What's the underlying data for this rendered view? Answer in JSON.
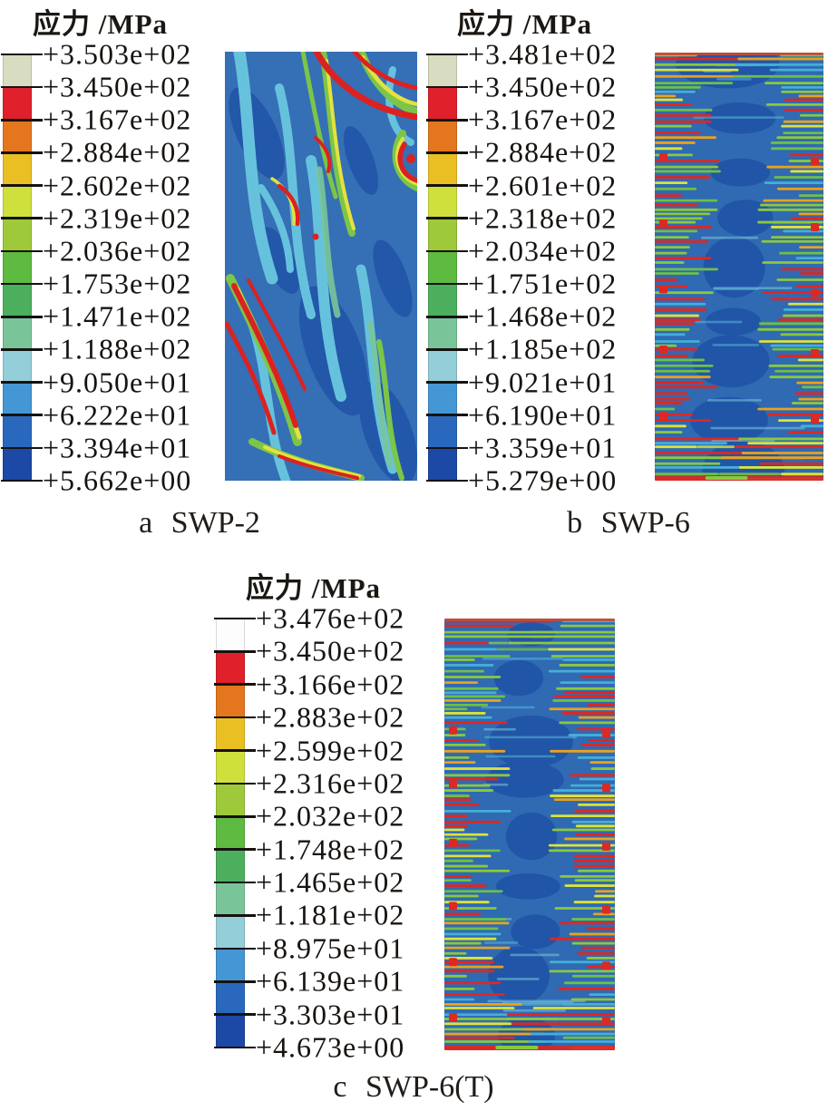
{
  "panels": [
    {
      "letter": "a",
      "caption": "a SWP-2",
      "legend_title": "应力 /MPa",
      "top_band_color": "#d8dcc0",
      "legend_labels": [
        "+3.503e+02",
        "+3.450e+02",
        "+3.167e+02",
        "+2.884e+02",
        "+2.602e+02",
        "+2.319e+02",
        "+2.036e+02",
        "+1.753e+02",
        "+1.471e+02",
        "+1.188e+02",
        "+9.050e+01",
        "+6.222e+01",
        "+3.394e+01",
        "+5.662e+00"
      ]
    },
    {
      "letter": "b",
      "caption": "b SWP-6",
      "legend_title": "应力 /MPa",
      "top_band_color": "#d8dcc0",
      "legend_labels": [
        "+3.481e+02",
        "+3.450e+02",
        "+3.167e+02",
        "+2.884e+02",
        "+2.601e+02",
        "+2.318e+02",
        "+2.034e+02",
        "+1.751e+02",
        "+1.468e+02",
        "+1.185e+02",
        "+9.021e+01",
        "+6.190e+01",
        "+3.359e+01",
        "+5.279e+00"
      ]
    },
    {
      "letter": "c",
      "caption": "c SWP-6(T)",
      "legend_title": "应力 /MPa",
      "top_band_color": "#fdfdfd",
      "legend_labels": [
        "+3.476e+02",
        "+3.450e+02",
        "+3.166e+02",
        "+2.883e+02",
        "+2.599e+02",
        "+2.316e+02",
        "+2.032e+02",
        "+1.748e+02",
        "+1.465e+02",
        "+1.181e+02",
        "+8.975e+01",
        "+6.139e+01",
        "+3.303e+01",
        "+4.673e+00"
      ]
    }
  ],
  "colorbar": {
    "band_colors_top_to_bottom": [
      "#d8dcc0",
      "#e0202a",
      "#e4761e",
      "#eabf24",
      "#cfe03c",
      "#9ec93a",
      "#5eba40",
      "#4caf5e",
      "#79c599",
      "#93ced9",
      "#4596d4",
      "#2a68bd",
      "#1c49a6"
    ]
  },
  "chart_data": [
    {
      "type": "heatmap",
      "panel": "a",
      "title": "应力 /MPa",
      "caption": "a SWP-2",
      "unit": "MPa",
      "legend_position": "left",
      "colorbar_tick_labels": [
        "+3.503e+02",
        "+3.450e+02",
        "+3.167e+02",
        "+2.884e+02",
        "+2.602e+02",
        "+2.319e+02",
        "+2.036e+02",
        "+1.753e+02",
        "+1.471e+02",
        "+1.188e+02",
        "+9.050e+01",
        "+6.222e+01",
        "+3.394e+01",
        "+5.662e+00"
      ],
      "colorbar_tick_values_MPa": [
        350.3,
        345.0,
        316.7,
        288.4,
        260.2,
        231.9,
        203.6,
        175.3,
        147.1,
        118.8,
        90.5,
        62.22,
        33.94,
        5.662
      ],
      "value_range_MPa": [
        5.662,
        350.3
      ],
      "band_colors_top_to_bottom": [
        "#d8dcc0",
        "#e0202a",
        "#e4761e",
        "#eabf24",
        "#cfe03c",
        "#9ec93a",
        "#5eba40",
        "#4caf5e",
        "#79c599",
        "#93ced9",
        "#4596d4",
        "#2a68bd",
        "#1c49a6"
      ],
      "pattern_hint": "blue stress field crossed by steep diagonal wavy bands of cyan/green/yellow with red high-stress streaks at top-right and lower-left"
    },
    {
      "type": "heatmap",
      "panel": "b",
      "title": "应力 /MPa",
      "caption": "b SWP-6",
      "unit": "MPa",
      "legend_position": "left",
      "colorbar_tick_labels": [
        "+3.481e+02",
        "+3.450e+02",
        "+3.167e+02",
        "+2.884e+02",
        "+2.601e+02",
        "+2.318e+02",
        "+2.034e+02",
        "+1.751e+02",
        "+1.468e+02",
        "+1.185e+02",
        "+9.021e+01",
        "+6.190e+01",
        "+3.359e+01",
        "+5.279e+00"
      ],
      "colorbar_tick_values_MPa": [
        348.1,
        345.0,
        316.7,
        288.4,
        260.1,
        231.8,
        203.4,
        175.1,
        146.8,
        118.5,
        90.21,
        61.9,
        33.59,
        5.279
      ],
      "value_range_MPa": [
        5.279,
        348.1
      ],
      "band_colors_top_to_bottom": [
        "#d8dcc0",
        "#e0202a",
        "#e4761e",
        "#eabf24",
        "#cfe03c",
        "#9ec93a",
        "#5eba40",
        "#4caf5e",
        "#79c599",
        "#93ced9",
        "#4596d4",
        "#2a68bd",
        "#1c49a6"
      ],
      "pattern_hint": "tall wall panel with fine horizontal stress striping; red/green high stress along vertical edges, top and bottom; dark blue low-stress core; red dots at connector points"
    },
    {
      "type": "heatmap",
      "panel": "c",
      "title": "应力 /MPa",
      "caption": "c SWP-6(T)",
      "unit": "MPa",
      "legend_position": "left",
      "colorbar_tick_labels": [
        "+3.476e+02",
        "+3.450e+02",
        "+3.166e+02",
        "+2.883e+02",
        "+2.599e+02",
        "+2.316e+02",
        "+2.032e+02",
        "+1.748e+02",
        "+1.465e+02",
        "+1.181e+02",
        "+8.975e+01",
        "+6.139e+01",
        "+3.303e+01",
        "+4.673e+00"
      ],
      "colorbar_tick_values_MPa": [
        347.6,
        345.0,
        316.6,
        288.3,
        259.9,
        231.6,
        203.2,
        174.8,
        146.5,
        118.1,
        89.75,
        61.39,
        33.03,
        4.673
      ],
      "value_range_MPa": [
        4.673,
        347.6
      ],
      "band_colors_top_to_bottom": [
        "#fdfdfd",
        "#e0202a",
        "#e4761e",
        "#eabf24",
        "#cfe03c",
        "#9ec93a",
        "#5eba40",
        "#4caf5e",
        "#79c599",
        "#93ced9",
        "#4596d4",
        "#2a68bd",
        "#1c49a6"
      ],
      "pattern_hint": "tall wall panel with fine horizontal stress striping; red/green high stress along vertical edges, top and bottom; dark blue low-stress core; red dots at connector points"
    }
  ]
}
